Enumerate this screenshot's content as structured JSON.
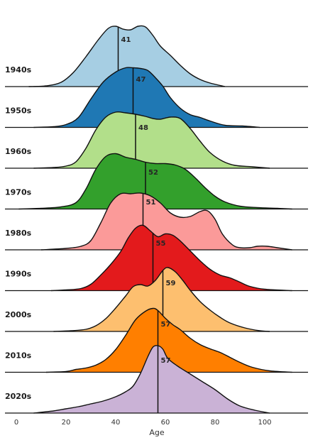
{
  "chart_data": {
    "type": "ridgeline",
    "xlabel": "Age",
    "xlim": [
      -5,
      116
    ],
    "x_ticks": [
      0,
      20,
      40,
      60,
      80,
      100
    ],
    "series": [
      {
        "name": "1940s",
        "median": 41,
        "color": "#a6cee3",
        "density": [
          [
            5,
            0.0
          ],
          [
            12,
            0.01
          ],
          [
            18,
            0.06
          ],
          [
            23,
            0.2
          ],
          [
            28,
            0.42
          ],
          [
            33,
            0.66
          ],
          [
            37,
            0.82
          ],
          [
            40,
            0.85
          ],
          [
            43,
            0.81
          ],
          [
            46,
            0.8
          ],
          [
            49,
            0.85
          ],
          [
            52,
            0.84
          ],
          [
            55,
            0.72
          ],
          [
            58,
            0.57
          ],
          [
            62,
            0.44
          ],
          [
            66,
            0.3
          ],
          [
            70,
            0.18
          ],
          [
            74,
            0.1
          ],
          [
            78,
            0.05
          ],
          [
            84,
            0.0
          ]
        ]
      },
      {
        "name": "1950s",
        "median": 47,
        "color": "#1f78b4",
        "density": [
          [
            7,
            0.0
          ],
          [
            15,
            0.01
          ],
          [
            20,
            0.04
          ],
          [
            25,
            0.14
          ],
          [
            30,
            0.4
          ],
          [
            35,
            0.64
          ],
          [
            40,
            0.78
          ],
          [
            44,
            0.84
          ],
          [
            47,
            0.84
          ],
          [
            50,
            0.83
          ],
          [
            53,
            0.8
          ],
          [
            56,
            0.7
          ],
          [
            59,
            0.58
          ],
          [
            62,
            0.42
          ],
          [
            66,
            0.27
          ],
          [
            70,
            0.18
          ],
          [
            74,
            0.14
          ],
          [
            78,
            0.09
          ],
          [
            84,
            0.03
          ],
          [
            91,
            0.02
          ],
          [
            98,
            0.0
          ]
        ]
      },
      {
        "name": "1960s",
        "median": 48,
        "color": "#b2df8a",
        "density": [
          [
            7,
            0.0
          ],
          [
            15,
            0.01
          ],
          [
            20,
            0.03
          ],
          [
            24,
            0.09
          ],
          [
            28,
            0.28
          ],
          [
            32,
            0.54
          ],
          [
            36,
            0.72
          ],
          [
            40,
            0.79
          ],
          [
            44,
            0.78
          ],
          [
            48,
            0.76
          ],
          [
            52,
            0.73
          ],
          [
            55,
            0.7
          ],
          [
            58,
            0.69
          ],
          [
            62,
            0.72
          ],
          [
            66,
            0.7
          ],
          [
            70,
            0.56
          ],
          [
            74,
            0.38
          ],
          [
            78,
            0.22
          ],
          [
            83,
            0.1
          ],
          [
            88,
            0.04
          ],
          [
            95,
            0.02
          ],
          [
            102,
            0.0
          ]
        ]
      },
      {
        "name": "1970s",
        "median": 52,
        "color": "#33a02c",
        "density": [
          [
            1,
            0.0
          ],
          [
            10,
            0.01
          ],
          [
            18,
            0.03
          ],
          [
            24,
            0.09
          ],
          [
            28,
            0.28
          ],
          [
            32,
            0.56
          ],
          [
            36,
            0.74
          ],
          [
            40,
            0.78
          ],
          [
            44,
            0.73
          ],
          [
            48,
            0.7
          ],
          [
            52,
            0.66
          ],
          [
            56,
            0.64
          ],
          [
            60,
            0.64
          ],
          [
            64,
            0.62
          ],
          [
            68,
            0.56
          ],
          [
            72,
            0.44
          ],
          [
            76,
            0.3
          ],
          [
            80,
            0.18
          ],
          [
            84,
            0.1
          ],
          [
            90,
            0.04
          ],
          [
            97,
            0.02
          ],
          [
            105,
            0.01
          ],
          [
            111,
            0.0
          ]
        ]
      },
      {
        "name": "1980s",
        "median": 51,
        "color": "#fb9a99",
        "density": [
          [
            10,
            0.0
          ],
          [
            20,
            0.02
          ],
          [
            26,
            0.05
          ],
          [
            30,
            0.13
          ],
          [
            34,
            0.38
          ],
          [
            38,
            0.66
          ],
          [
            42,
            0.79
          ],
          [
            46,
            0.79
          ],
          [
            50,
            0.8
          ],
          [
            54,
            0.76
          ],
          [
            58,
            0.66
          ],
          [
            62,
            0.52
          ],
          [
            66,
            0.46
          ],
          [
            70,
            0.47
          ],
          [
            74,
            0.54
          ],
          [
            77,
            0.55
          ],
          [
            80,
            0.43
          ],
          [
            83,
            0.22
          ],
          [
            87,
            0.07
          ],
          [
            90,
            0.03
          ],
          [
            94,
            0.03
          ],
          [
            97,
            0.05
          ],
          [
            101,
            0.05
          ],
          [
            105,
            0.03
          ],
          [
            111,
            0.0
          ]
        ]
      },
      {
        "name": "1990s",
        "median": 55,
        "color": "#e31a1c",
        "density": [
          [
            14,
            0.0
          ],
          [
            20,
            0.01
          ],
          [
            26,
            0.03
          ],
          [
            30,
            0.09
          ],
          [
            34,
            0.22
          ],
          [
            38,
            0.37
          ],
          [
            42,
            0.55
          ],
          [
            45,
            0.74
          ],
          [
            48,
            0.88
          ],
          [
            51,
            0.92
          ],
          [
            54,
            0.84
          ],
          [
            57,
            0.76
          ],
          [
            60,
            0.8
          ],
          [
            63,
            0.78
          ],
          [
            66,
            0.7
          ],
          [
            70,
            0.56
          ],
          [
            74,
            0.42
          ],
          [
            78,
            0.3
          ],
          [
            82,
            0.22
          ],
          [
            86,
            0.18
          ],
          [
            90,
            0.12
          ],
          [
            94,
            0.06
          ],
          [
            100,
            0.02
          ],
          [
            111,
            0.0
          ]
        ]
      },
      {
        "name": "2000s",
        "median": 59,
        "color": "#fdbf6f",
        "density": [
          [
            15,
            0.0
          ],
          [
            22,
            0.01
          ],
          [
            28,
            0.03
          ],
          [
            32,
            0.08
          ],
          [
            36,
            0.18
          ],
          [
            40,
            0.33
          ],
          [
            44,
            0.5
          ],
          [
            47,
            0.63
          ],
          [
            50,
            0.66
          ],
          [
            53,
            0.64
          ],
          [
            56,
            0.72
          ],
          [
            59,
            0.86
          ],
          [
            61,
            0.9
          ],
          [
            64,
            0.84
          ],
          [
            67,
            0.72
          ],
          [
            70,
            0.58
          ],
          [
            74,
            0.42
          ],
          [
            78,
            0.3
          ],
          [
            82,
            0.2
          ],
          [
            86,
            0.12
          ],
          [
            92,
            0.05
          ],
          [
            98,
            0.01
          ],
          [
            102,
            0.0
          ]
        ]
      },
      {
        "name": "2010s",
        "median": 57,
        "color": "#ff7f00",
        "density": [
          [
            12,
            0.0
          ],
          [
            20,
            0.01
          ],
          [
            24,
            0.04
          ],
          [
            28,
            0.06
          ],
          [
            32,
            0.1
          ],
          [
            36,
            0.18
          ],
          [
            40,
            0.32
          ],
          [
            44,
            0.52
          ],
          [
            48,
            0.74
          ],
          [
            52,
            0.86
          ],
          [
            55,
            0.9
          ],
          [
            57,
            0.87
          ],
          [
            60,
            0.76
          ],
          [
            63,
            0.67
          ],
          [
            66,
            0.6
          ],
          [
            70,
            0.48
          ],
          [
            74,
            0.39
          ],
          [
            78,
            0.33
          ],
          [
            82,
            0.28
          ],
          [
            86,
            0.21
          ],
          [
            90,
            0.14
          ],
          [
            95,
            0.07
          ],
          [
            102,
            0.02
          ],
          [
            111,
            0.0
          ]
        ]
      },
      {
        "name": "2020s",
        "median": 57,
        "color": "#cab2d6",
        "density": [
          [
            7,
            0.0
          ],
          [
            15,
            0.03
          ],
          [
            20,
            0.06
          ],
          [
            25,
            0.09
          ],
          [
            30,
            0.13
          ],
          [
            35,
            0.17
          ],
          [
            40,
            0.23
          ],
          [
            44,
            0.3
          ],
          [
            47,
            0.38
          ],
          [
            50,
            0.56
          ],
          [
            53,
            0.8
          ],
          [
            55,
            0.93
          ],
          [
            57,
            0.95
          ],
          [
            59,
            0.9
          ],
          [
            61,
            0.77
          ],
          [
            65,
            0.66
          ],
          [
            70,
            0.55
          ],
          [
            75,
            0.44
          ],
          [
            80,
            0.33
          ],
          [
            85,
            0.2
          ],
          [
            90,
            0.1
          ],
          [
            96,
            0.04
          ],
          [
            102,
            0.0
          ]
        ]
      }
    ]
  }
}
